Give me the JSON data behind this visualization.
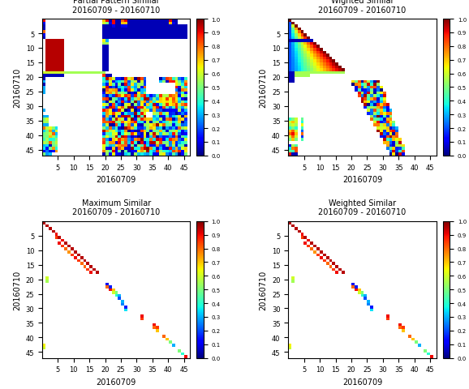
{
  "titles": [
    [
      "Partial Pattern Similar",
      "20160709 - 20160710"
    ],
    [
      "Wighted Similar",
      "20160709 - 20160710"
    ],
    [
      "Maximum Similar",
      "20160709 - 20160710"
    ],
    [
      "Weighted Similar",
      "20160709 - 20160710"
    ]
  ],
  "xlabel": "20160709",
  "ylabel": "20160710",
  "xticks": [
    5,
    10,
    15,
    20,
    25,
    30,
    35,
    40,
    45
  ],
  "yticks": [
    5,
    10,
    15,
    20,
    25,
    30,
    35,
    40,
    45
  ],
  "colorbar_ticks": [
    0,
    0.1,
    0.2,
    0.3,
    0.4,
    0.5,
    0.6,
    0.7,
    0.8,
    0.9,
    1
  ],
  "n": 47,
  "vmin": 0,
  "vmax": 1,
  "title_fontsize": 7,
  "label_fontsize": 7,
  "tick_fontsize": 6,
  "cbar_fontsize": 5
}
